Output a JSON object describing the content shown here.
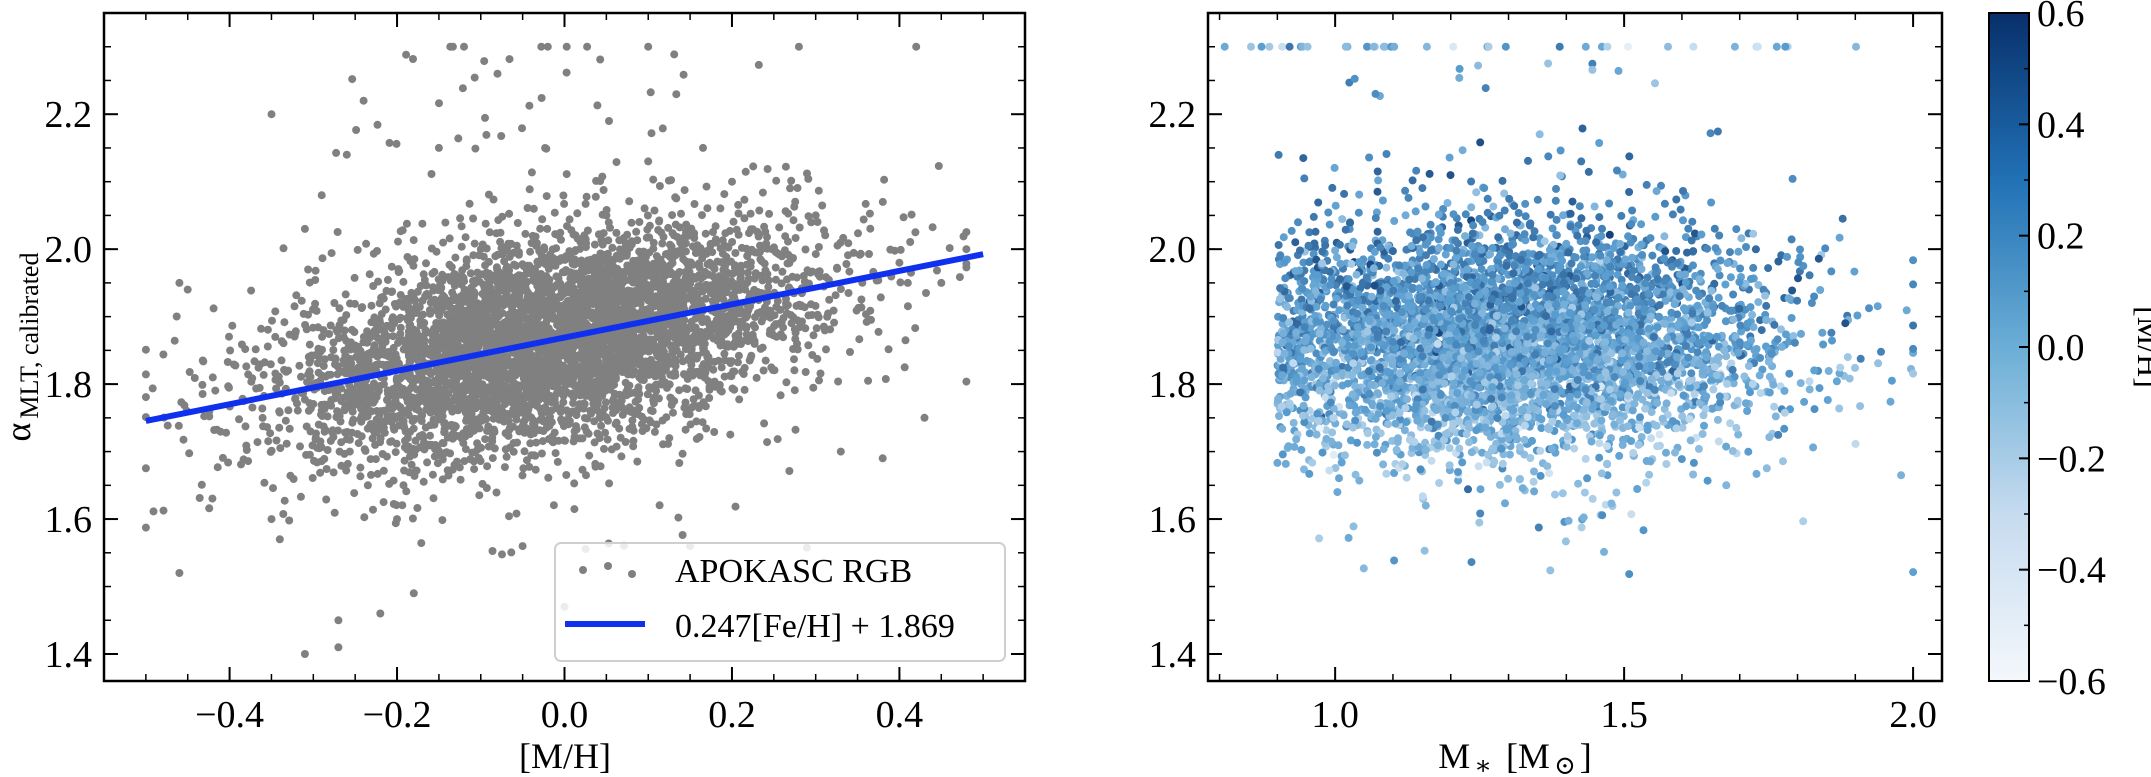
{
  "chart_data": [
    {
      "type": "scatter",
      "panel": "left",
      "xlabel": "[M/H]",
      "ylabel_main": "α",
      "ylabel_sub": "MLT, calibrated",
      "xlim": [
        -0.55,
        0.55
      ],
      "ylim": [
        1.36,
        2.35
      ],
      "x_ticks": [
        -0.4,
        -0.2,
        0.0,
        0.2,
        0.4
      ],
      "x_tick_labels": [
        "−0.4",
        "−0.2",
        "0.0",
        "0.2",
        "0.4"
      ],
      "y_ticks": [
        1.4,
        1.6,
        1.8,
        2.0,
        2.2
      ],
      "y_tick_labels": [
        "1.4",
        "1.6",
        "1.8",
        "2.0",
        "2.2"
      ],
      "series": [
        {
          "name": "APOKASC RGB",
          "kind": "scatter",
          "color": "#808080",
          "n_points": 5000,
          "points_sampled": [
            [
              -0.46,
              1.52
            ],
            [
              -0.46,
              1.95
            ],
            [
              -0.45,
              1.94
            ],
            [
              -0.42,
              1.81
            ],
            [
              -0.35,
              1.6
            ],
            [
              -0.35,
              2.2
            ],
            [
              -0.34,
              1.57
            ],
            [
              -0.31,
              1.4
            ],
            [
              -0.31,
              2.03
            ],
            [
              -0.3,
              1.8
            ],
            [
              -0.29,
              2.08
            ],
            [
              -0.27,
              1.45
            ],
            [
              -0.27,
              1.41
            ],
            [
              -0.26,
              2.14
            ],
            [
              -0.24,
              2.22
            ],
            [
              -0.22,
              1.46
            ],
            [
              -0.2,
              1.6
            ],
            [
              -0.18,
              1.49
            ],
            [
              -0.15,
              2.15
            ],
            [
              -0.1,
              2.0
            ],
            [
              -0.08,
              2.26
            ],
            [
              -0.05,
              1.56
            ],
            [
              0.0,
              1.47
            ],
            [
              0.05,
              2.05
            ],
            [
              0.1,
              2.13
            ],
            [
              0.15,
              1.56
            ],
            [
              0.2,
              2.1
            ],
            [
              0.25,
              2.0
            ],
            [
              0.3,
              2.05
            ],
            [
              0.33,
              1.7
            ],
            [
              0.38,
              1.69
            ],
            [
              0.4,
              1.98
            ],
            [
              0.41,
              1.95
            ],
            [
              0.43,
              1.75
            ],
            [
              0.45,
              1.95
            ],
            [
              -0.12,
              2.3
            ],
            [
              -0.02,
              2.3
            ],
            [
              0.1,
              2.3
            ],
            [
              0.28,
              2.3
            ],
            [
              0.42,
              2.3
            ]
          ]
        },
        {
          "name": "0.247[Fe/H] + 1.869",
          "kind": "line",
          "color": "#1030f0",
          "slope": 0.247,
          "intercept": 1.869,
          "x_range": [
            -0.5,
            0.5
          ]
        }
      ],
      "legend": {
        "position": "lower-right",
        "entries": [
          "APOKASC RGB",
          "0.247[Fe/H] + 1.869"
        ]
      }
    },
    {
      "type": "scatter",
      "panel": "right",
      "xlabel_main": "M",
      "xlabel_star": "∗",
      "xlabel_unit": "[M",
      "xlabel_sun": "⊙",
      "xlabel_close": "]",
      "xlim": [
        0.78,
        2.05
      ],
      "ylim": [
        1.36,
        2.35
      ],
      "x_ticks": [
        1.0,
        1.5,
        2.0
      ],
      "x_tick_labels": [
        "1.0",
        "1.5",
        "2.0"
      ],
      "y_ticks": [
        1.4,
        1.6,
        1.8,
        2.0,
        2.2
      ],
      "y_tick_labels": [
        "1.4",
        "1.6",
        "1.8",
        "2.0",
        "2.2"
      ],
      "color_by": "[M/H]",
      "n_points": 5000,
      "colorbar": {
        "label": "[M/H]",
        "range": [
          -0.6,
          0.6
        ],
        "ticks": [
          -0.6,
          -0.4,
          -0.2,
          0.0,
          0.2,
          0.4,
          0.6
        ],
        "tick_labels": [
          "−0.6",
          "−0.4",
          "−0.2",
          "0.0",
          "0.2",
          "0.4",
          "0.6"
        ],
        "color_low": "#f4f8fc",
        "color_mid": "#5a9ed0",
        "color_high": "#08306b"
      }
    }
  ]
}
